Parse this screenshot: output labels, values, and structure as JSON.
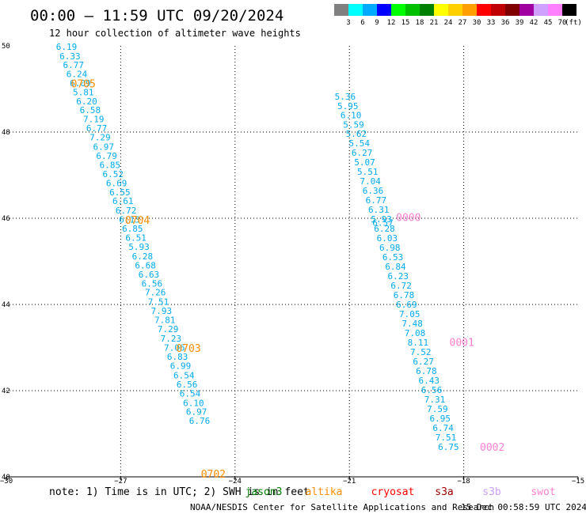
{
  "header": {
    "title": "00:00 – 11:59 UTC 09/20/2024",
    "subtitle": "12 hour collection of altimeter wave heights"
  },
  "colorbar": {
    "labels": [
      "3",
      "6",
      "9",
      "12",
      "15",
      "18",
      "21",
      "24",
      "27",
      "30",
      "33",
      "36",
      "39",
      "42",
      "45",
      "70"
    ],
    "unit": "(ft)",
    "colors": [
      "#808080",
      "#00ffff",
      "#00aaff",
      "#0000ff",
      "#00ff00",
      "#00c000",
      "#008000",
      "#ffff00",
      "#ffd000",
      "#ffa000",
      "#ff0000",
      "#c00000",
      "#800000",
      "#a000a0",
      "#d0a0ff",
      "#ff80ff",
      "#000000"
    ]
  },
  "footer": {
    "note": "note: 1) Time is in UTC; 2) SWH is in feet",
    "satellites": [
      {
        "name": "jason3",
        "color": "#008000"
      },
      {
        "name": "altika",
        "color": "#ff8c00"
      },
      {
        "name": "cryosat",
        "color": "#ff0000"
      },
      {
        "name": "s3a",
        "color": "#a00000"
      },
      {
        "name": "s3b",
        "color": "#c8a0ff"
      },
      {
        "name": "swot",
        "color": "#ff80d0"
      }
    ],
    "credit": "NOAA/NESDIS Center for Satellite Applications and Research",
    "timestamp": "15 Dec 00:58:59 UTC 2024"
  },
  "chart_data": {
    "type": "scatter",
    "xlabel": "",
    "ylabel": "",
    "xlim": [
      -30,
      -15
    ],
    "ylim": [
      40,
      50
    ],
    "x_ticks": [
      {
        "v": -30,
        "label": "−30"
      },
      {
        "v": -27,
        "label": "−27"
      },
      {
        "v": -24,
        "label": "−24"
      },
      {
        "v": -21,
        "label": "−21"
      },
      {
        "v": -18,
        "label": "−18"
      },
      {
        "v": -15,
        "label": "−15"
      }
    ],
    "y_ticks": [
      {
        "v": 40,
        "label": "40"
      },
      {
        "v": 42,
        "label": "42"
      },
      {
        "v": 44,
        "label": "44"
      },
      {
        "v": 46,
        "label": "46"
      },
      {
        "v": 48,
        "label": "48"
      },
      {
        "v": 50,
        "label": "50"
      }
    ],
    "grid": true,
    "value_color": "#00aaee",
    "time_label_color": "#ff8c00",
    "tracks": [
      {
        "satellite": "altika",
        "points": [
          {
            "lon": -28.42,
            "lat": 49.98,
            "swh": "6.19"
          },
          {
            "lon": -28.33,
            "lat": 49.76,
            "swh": "6.33"
          },
          {
            "lon": -28.24,
            "lat": 49.56,
            "swh": "6.77"
          },
          {
            "lon": -28.15,
            "lat": 49.35,
            "swh": "6.24"
          },
          {
            "lon": -28.06,
            "lat": 49.14,
            "swh": "6.09"
          },
          {
            "lon": -27.98,
            "lat": 48.93,
            "swh": "5.81"
          },
          {
            "lon": -27.89,
            "lat": 48.72,
            "swh": "6.20"
          },
          {
            "lon": -27.8,
            "lat": 48.51,
            "swh": "6.58"
          },
          {
            "lon": -27.71,
            "lat": 48.3,
            "swh": "7.19"
          },
          {
            "lon": -27.63,
            "lat": 48.09,
            "swh": "6.77"
          },
          {
            "lon": -27.54,
            "lat": 47.88,
            "swh": "7.29"
          },
          {
            "lon": -27.45,
            "lat": 47.66,
            "swh": "6.97"
          },
          {
            "lon": -27.37,
            "lat": 47.45,
            "swh": "6.79"
          },
          {
            "lon": -27.28,
            "lat": 47.24,
            "swh": "6.85"
          },
          {
            "lon": -27.2,
            "lat": 47.03,
            "swh": "6.52"
          },
          {
            "lon": -27.11,
            "lat": 46.82,
            "swh": "6.69"
          },
          {
            "lon": -27.02,
            "lat": 46.61,
            "swh": "6.55"
          },
          {
            "lon": -26.94,
            "lat": 46.4,
            "swh": "6.61"
          },
          {
            "lon": -26.86,
            "lat": 46.18,
            "swh": "6.72"
          },
          {
            "lon": -26.77,
            "lat": 45.97,
            "swh": "6.13"
          },
          {
            "lon": -26.69,
            "lat": 45.76,
            "swh": "6.85"
          },
          {
            "lon": -26.6,
            "lat": 45.55,
            "swh": "6.51"
          },
          {
            "lon": -26.52,
            "lat": 45.34,
            "swh": "5.93"
          },
          {
            "lon": -26.43,
            "lat": 45.12,
            "swh": "6.28"
          },
          {
            "lon": -26.35,
            "lat": 44.91,
            "swh": "6.68"
          },
          {
            "lon": -26.26,
            "lat": 44.7,
            "swh": "6.63"
          },
          {
            "lon": -26.18,
            "lat": 44.49,
            "swh": "6.56"
          },
          {
            "lon": -26.09,
            "lat": 44.28,
            "swh": "7.26"
          },
          {
            "lon": -26.01,
            "lat": 44.06,
            "swh": "7.51"
          },
          {
            "lon": -25.93,
            "lat": 43.85,
            "swh": "7.93"
          },
          {
            "lon": -25.84,
            "lat": 43.64,
            "swh": "7.81"
          },
          {
            "lon": -25.76,
            "lat": 43.43,
            "swh": "7.29"
          },
          {
            "lon": -25.68,
            "lat": 43.21,
            "swh": "7.23"
          },
          {
            "lon": -25.59,
            "lat": 43.0,
            "swh": "7.06"
          },
          {
            "lon": -25.51,
            "lat": 42.79,
            "swh": "6.83"
          },
          {
            "lon": -25.43,
            "lat": 42.58,
            "swh": "6.99"
          },
          {
            "lon": -25.34,
            "lat": 42.36,
            "swh": "6.54"
          },
          {
            "lon": -25.26,
            "lat": 42.15,
            "swh": "6.56"
          },
          {
            "lon": -25.18,
            "lat": 41.94,
            "swh": "6.54"
          },
          {
            "lon": -25.09,
            "lat": 41.72,
            "swh": "6.10"
          },
          {
            "lon": -25.01,
            "lat": 41.51,
            "swh": "6.97"
          },
          {
            "lon": -24.93,
            "lat": 41.3,
            "swh": "6.76"
          }
        ],
        "time_labels": [
          {
            "text": "0705",
            "lon": -27.98,
            "lat": 49.13
          },
          {
            "text": "0704",
            "lon": -26.56,
            "lat": 45.96
          },
          {
            "text": "0703",
            "lon": -25.22,
            "lat": 42.99
          },
          {
            "text": "0702",
            "lon": -24.57,
            "lat": 40.07
          }
        ]
      },
      {
        "satellite": "swot",
        "label_color": "#ff80d0",
        "points": [
          {
            "lon": -21.11,
            "lat": 48.83,
            "swh": "5.36"
          },
          {
            "lon": -21.04,
            "lat": 48.61,
            "swh": "5.95"
          },
          {
            "lon": -20.96,
            "lat": 48.39,
            "swh": "6.10"
          },
          {
            "lon": -20.89,
            "lat": 48.17,
            "swh": "5.59"
          },
          {
            "lon": -20.82,
            "lat": 47.96,
            "swh": "5.62"
          },
          {
            "lon": -20.74,
            "lat": 47.74,
            "swh": "5.54"
          },
          {
            "lon": -20.67,
            "lat": 47.52,
            "swh": "6.27"
          },
          {
            "lon": -20.6,
            "lat": 47.3,
            "swh": "5.07"
          },
          {
            "lon": -20.52,
            "lat": 47.08,
            "swh": "5.51"
          },
          {
            "lon": -20.45,
            "lat": 46.86,
            "swh": "7.04"
          },
          {
            "lon": -20.38,
            "lat": 46.64,
            "swh": "6.36"
          },
          {
            "lon": -20.3,
            "lat": 46.42,
            "swh": "6.77"
          },
          {
            "lon": -20.23,
            "lat": 46.2,
            "swh": "6.31"
          },
          {
            "lon": -20.16,
            "lat": 45.98,
            "swh": "5.93"
          },
          {
            "lon": -20.12,
            "lat": 45.9,
            "swh": "6.57"
          },
          {
            "lon": -20.08,
            "lat": 45.76,
            "swh": "6.28"
          },
          {
            "lon": -20.01,
            "lat": 45.54,
            "swh": "6.03"
          },
          {
            "lon": -19.94,
            "lat": 45.32,
            "swh": "6.98"
          },
          {
            "lon": -19.86,
            "lat": 45.1,
            "swh": "6.53"
          },
          {
            "lon": -19.79,
            "lat": 44.88,
            "swh": "6.84"
          },
          {
            "lon": -19.72,
            "lat": 44.66,
            "swh": "6.23"
          },
          {
            "lon": -19.64,
            "lat": 44.44,
            "swh": "6.72"
          },
          {
            "lon": -19.57,
            "lat": 44.22,
            "swh": "6.78"
          },
          {
            "lon": -19.5,
            "lat": 44.0,
            "swh": "6.69"
          },
          {
            "lon": -19.42,
            "lat": 43.78,
            "swh": "7.05"
          },
          {
            "lon": -19.35,
            "lat": 43.56,
            "swh": "7.48"
          },
          {
            "lon": -19.28,
            "lat": 43.34,
            "swh": "7.08"
          },
          {
            "lon": -19.2,
            "lat": 43.12,
            "swh": "8.11"
          },
          {
            "lon": -19.13,
            "lat": 42.9,
            "swh": "7.52"
          },
          {
            "lon": -19.06,
            "lat": 42.68,
            "swh": "6.27"
          },
          {
            "lon": -18.98,
            "lat": 42.46,
            "swh": "6.78"
          },
          {
            "lon": -18.91,
            "lat": 42.24,
            "swh": "6.43"
          },
          {
            "lon": -18.84,
            "lat": 42.02,
            "swh": "6.56"
          },
          {
            "lon": -18.76,
            "lat": 41.8,
            "swh": "7.31"
          },
          {
            "lon": -18.69,
            "lat": 41.58,
            "swh": "7.59"
          },
          {
            "lon": -18.62,
            "lat": 41.36,
            "swh": "6.95"
          },
          {
            "lon": -18.54,
            "lat": 41.14,
            "swh": "6.74"
          },
          {
            "lon": -18.47,
            "lat": 40.92,
            "swh": "7.51"
          },
          {
            "lon": -18.4,
            "lat": 40.7,
            "swh": "6.75"
          }
        ],
        "time_labels": [
          {
            "text": "0000",
            "lon": -19.45,
            "lat": 46.03
          },
          {
            "text": "0001",
            "lon": -18.05,
            "lat": 43.13
          },
          {
            "text": "0002",
            "lon": -17.25,
            "lat": 40.7
          }
        ]
      }
    ]
  }
}
